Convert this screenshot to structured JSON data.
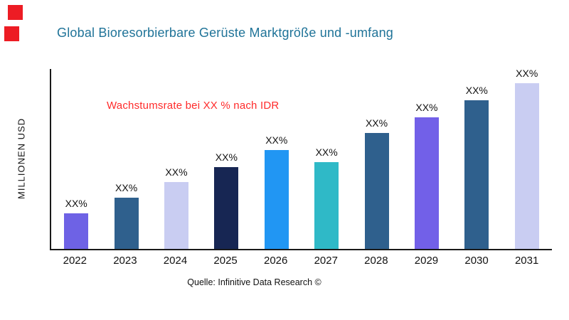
{
  "title": "Global Bioresorbierbare Gerüste Marktgröße und -umfang",
  "annotation": "Wachstumsrate bei XX % nach IDR",
  "y_axis_label": "MILLIONEN USD",
  "source": "Quelle: Infinitive Data Research ©",
  "colors": {
    "accent_red": "#ED1C24",
    "title": "#1F7398",
    "annotation": "#FF2B2B",
    "axis": "#1A1A1A"
  },
  "chart_data": {
    "type": "bar",
    "title": "Global Bioresorbierbare Gerüste Marktgröße und -umfang",
    "categories": [
      "2022",
      "2023",
      "2024",
      "2025",
      "2026",
      "2027",
      "2028",
      "2029",
      "2030",
      "2031"
    ],
    "values": [
      21,
      30,
      39,
      48,
      58,
      51,
      68,
      77,
      87,
      97
    ],
    "bar_labels": [
      "XX%",
      "XX%",
      "XX%",
      "XX%",
      "XX%",
      "XX%",
      "XX%",
      "XX%",
      "XX%",
      "XX%"
    ],
    "bar_colors": [
      "#6E62E5",
      "#2F608D",
      "#C9CDF2",
      "#172653",
      "#2196F3",
      "#2FB9C7",
      "#2F608D",
      "#7260E8",
      "#2F608D",
      "#C9CDF2"
    ],
    "xlabel": "",
    "ylabel": "MILLIONEN USD",
    "ylim": [
      0,
      100
    ],
    "grid": false,
    "legend": false,
    "annotation": "Wachstumsrate bei XX % nach IDR"
  }
}
